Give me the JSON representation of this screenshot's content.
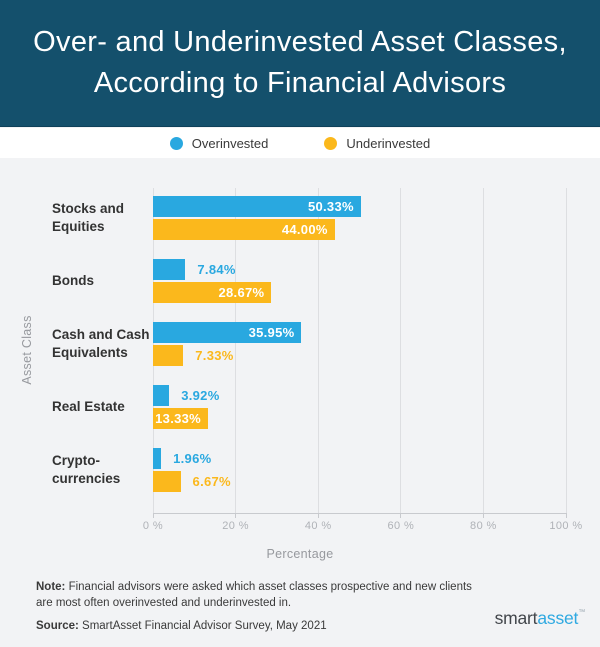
{
  "title": {
    "line1": "Over- and Underinvested Asset Classes,",
    "line2": "According to Financial Advisors"
  },
  "colors": {
    "header_bg": "#14506C",
    "page_bg": "#F2F3F5",
    "overinvested_blue": "#29A8E0",
    "underinvested_yellow": "#FBB81C",
    "logo_blue": "#2FA9E1",
    "logo_gray": "#42464B"
  },
  "chart_data": {
    "type": "bar",
    "orientation": "horizontal",
    "title": "Over- and Underinvested Asset Classes, According to Financial Advisors",
    "categories": [
      "Stocks and\nEquities",
      "Bonds",
      "Cash and Cash\nEquivalents",
      "Real Estate",
      "Crypto-\ncurrencies"
    ],
    "series": [
      {
        "name": "Overinvested",
        "color": "#29A8E0",
        "values": [
          50.33,
          7.84,
          35.95,
          3.92,
          1.96
        ],
        "labels": [
          "50.33%",
          "7.84%",
          "35.95%",
          "3.92%",
          "1.96%"
        ]
      },
      {
        "name": "Underinvested",
        "color": "#FBB81C",
        "values": [
          44.0,
          28.67,
          7.33,
          13.33,
          6.67
        ],
        "labels": [
          "44.00%",
          "28.67%",
          "7.33%",
          "13.33%",
          "6.67%"
        ]
      }
    ],
    "xlabel": "Percentage",
    "ylabel": "Asset Class",
    "xlim": [
      0,
      100
    ],
    "xticks": [
      {
        "value": 0,
        "label": "0 %"
      },
      {
        "value": 20,
        "label": "20 %"
      },
      {
        "value": 40,
        "label": "40 %"
      },
      {
        "value": 60,
        "label": "60 %"
      },
      {
        "value": 80,
        "label": "80 %"
      },
      {
        "value": 100,
        "label": "100 %"
      }
    ],
    "grid": "vertical",
    "legend_position": "top",
    "inside_label_threshold": 13
  },
  "footer": {
    "note_label": "Note:",
    "note_text": " Financial advisors were asked which asset classes prospective and new clients are most often overinvested and underinvested in.",
    "source_label": "Source:",
    "source_text": " SmartAsset Financial Advisor Survey, May 2021",
    "logo": {
      "part1": "smart",
      "part2": "asset",
      "tm": "™"
    }
  }
}
